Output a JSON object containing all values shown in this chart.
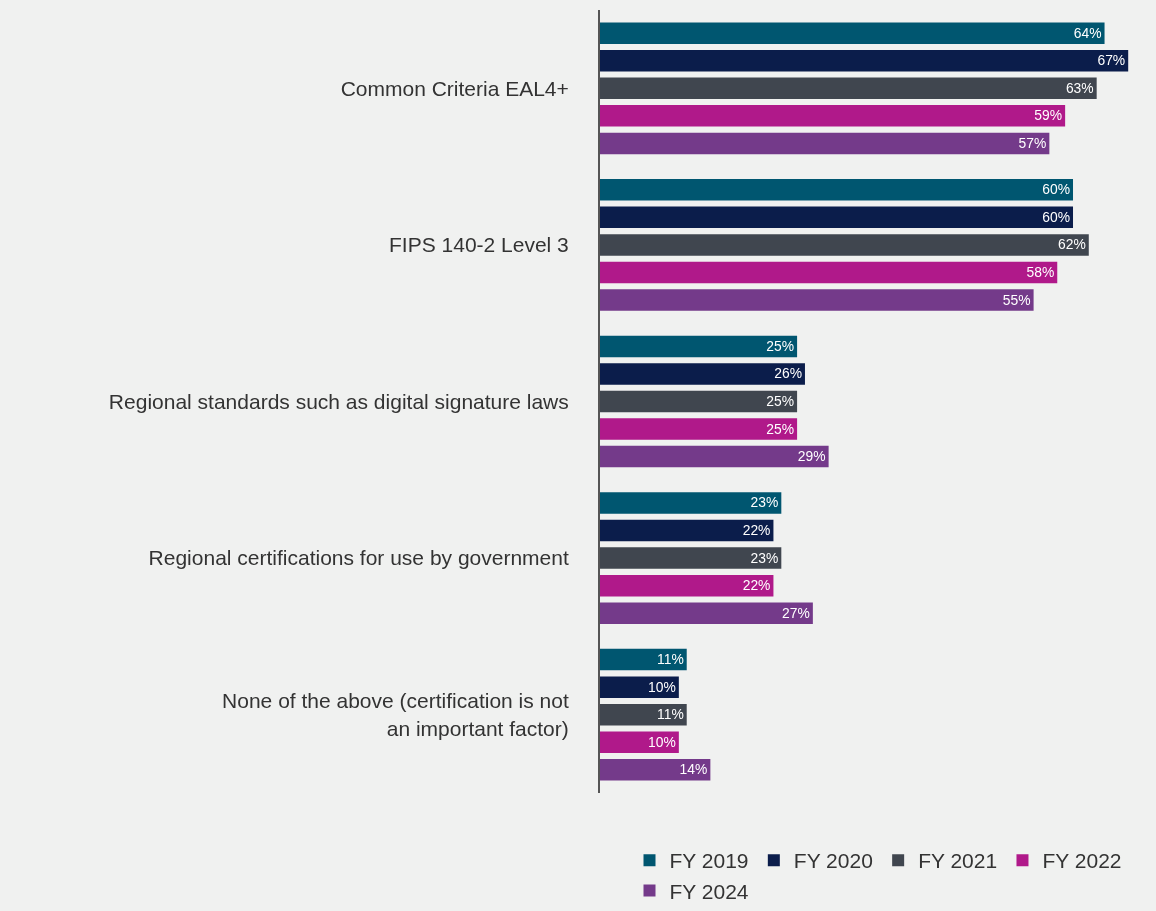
{
  "chart_data": {
    "type": "bar",
    "orientation": "horizontal",
    "legend": "bottom",
    "categories": [
      "Common Criteria EAL4+",
      "FIPS 140-2 Level 3",
      "Regional standards such as digital signature laws",
      "Regional certifications for use by government",
      "None of the above (certification is not\nan important factor)"
    ],
    "series": [
      {
        "name": "FY 2019",
        "color": "#005670",
        "values": [
          64,
          60,
          25,
          23,
          11
        ],
        "value_labels": [
          "64%",
          "60%",
          "25%",
          "23%",
          "11%"
        ]
      },
      {
        "name": "FY 2020",
        "color": "#0b1d4b",
        "values": [
          67,
          60,
          26,
          22,
          10
        ],
        "value_labels": [
          "67%",
          "60%",
          "26%",
          "22%",
          "10%"
        ]
      },
      {
        "name": "FY 2021",
        "color": "#40464f",
        "values": [
          63,
          62,
          25,
          23,
          11
        ],
        "value_labels": [
          "63%",
          "62%",
          "25%",
          "23%",
          "11%"
        ]
      },
      {
        "name": "FY 2022",
        "color": "#b0198a",
        "values": [
          59,
          58,
          25,
          22,
          10
        ],
        "value_labels": [
          "59%",
          "58%",
          "25%",
          "22%",
          "10%"
        ]
      },
      {
        "name": "FY 2024",
        "color": "#743a8a",
        "values": [
          57,
          55,
          29,
          27,
          14
        ],
        "value_labels": [
          "57%",
          "55%",
          "29%",
          "27%",
          "14%"
        ]
      }
    ]
  }
}
